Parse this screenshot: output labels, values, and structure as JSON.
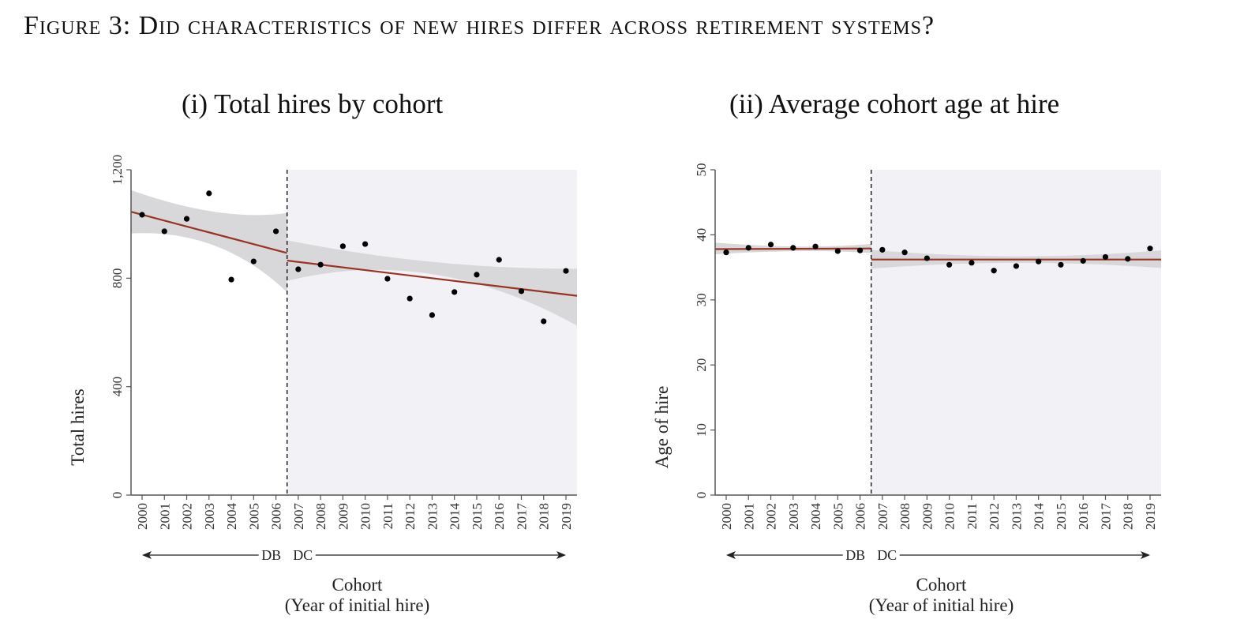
{
  "figure_title": "Figure 3: Did characteristics of new hires differ across retirement systems?",
  "chart_data": [
    {
      "type": "scatter",
      "title": "(i) Total hires by cohort",
      "xlabel": "Cohort",
      "xlabel2": "(Year of initial hire)",
      "ylabel": "Total hires",
      "ylim": [
        0,
        1200
      ],
      "yticks": [
        0,
        400,
        800,
        1200
      ],
      "ytick_labels": [
        "0",
        "400",
        "800",
        "1,200"
      ],
      "x": [
        2000,
        2001,
        2002,
        2003,
        2004,
        2005,
        2006,
        2007,
        2008,
        2009,
        2010,
        2011,
        2012,
        2013,
        2014,
        2015,
        2016,
        2017,
        2018,
        2019
      ],
      "values": [
        1034,
        973,
        1019,
        1113,
        795,
        862,
        973,
        833,
        850,
        918,
        926,
        798,
        725,
        664,
        749,
        813,
        868,
        752,
        641,
        827
      ],
      "cutoff_between": [
        2006,
        2007
      ],
      "regime_labels": {
        "left": "DB",
        "right": "DC"
      },
      "fit": [
        {
          "segment": "DB",
          "x": [
            2000,
            2006.5
          ],
          "y": [
            1045,
            893
          ],
          "ci_low": [
            965,
            748
          ],
          "ci_high": [
            1125,
            1040
          ],
          "ci_mid": [
            2003.5,
            920,
            1045
          ]
        },
        {
          "segment": "DC",
          "x": [
            2006.5,
            2019.5
          ],
          "y": [
            865,
            735
          ],
          "ci_low": [
            790,
            625
          ],
          "ci_high": [
            940,
            835
          ],
          "ci_mid": [
            2013,
            815,
            860
          ]
        }
      ],
      "colors": {
        "fit_line": "#9a3324",
        "ci_band": "#d6d6d9",
        "points": "#000000",
        "dc_shade": "#f1f1f6"
      }
    },
    {
      "type": "scatter",
      "title": "(ii) Average cohort age at hire",
      "xlabel": "Cohort",
      "xlabel2": "(Year of initial hire)",
      "ylabel": "Age of hire",
      "ylim": [
        0,
        50
      ],
      "yticks": [
        0,
        10,
        20,
        30,
        40,
        50
      ],
      "ytick_labels": [
        "0",
        "10",
        "20",
        "30",
        "40",
        "50"
      ],
      "x": [
        2000,
        2001,
        2002,
        2003,
        2004,
        2005,
        2006,
        2007,
        2008,
        2009,
        2010,
        2011,
        2012,
        2013,
        2014,
        2015,
        2016,
        2017,
        2018,
        2019
      ],
      "values": [
        37.3,
        38.0,
        38.5,
        38.0,
        38.2,
        37.5,
        37.6,
        37.7,
        37.3,
        36.4,
        35.4,
        35.7,
        34.5,
        35.2,
        35.9,
        35.4,
        36.0,
        36.6,
        36.3,
        37.9
      ],
      "cutoff_between": [
        2006,
        2007
      ],
      "regime_labels": {
        "left": "DB",
        "right": "DC"
      },
      "fit": [
        {
          "segment": "DB",
          "x": [
            2000,
            2006.5
          ],
          "y": [
            37.8,
            37.9
          ],
          "ci_low": [
            37.0,
            37.2
          ],
          "ci_high": [
            38.8,
            38.6
          ],
          "ci_mid": [
            2003.5,
            37.5,
            38.2
          ]
        },
        {
          "segment": "DC",
          "x": [
            2006.5,
            2019.5
          ],
          "y": [
            36.2,
            36.2
          ],
          "ci_low": [
            34.8,
            34.9
          ],
          "ci_high": [
            37.7,
            37.6
          ],
          "ci_mid": [
            2013,
            35.7,
            36.7
          ]
        }
      ],
      "colors": {
        "fit_line": "#9a3324",
        "ci_band": "#d6d6d9",
        "points": "#000000",
        "dc_shade": "#f1f1f6"
      }
    }
  ]
}
